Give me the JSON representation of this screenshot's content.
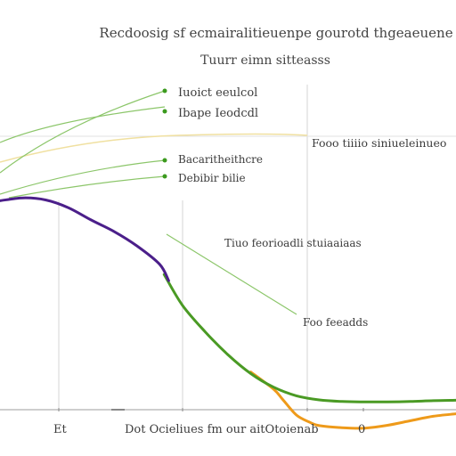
{
  "chart_data": {
    "type": "line",
    "title": "Recdoosig sf ecmairalitieuenpe gourotd thgeaeuene",
    "subtitle": "Tuurr eimn sitteasss",
    "xlabel": "Dot Ocieliues fm our aitOtoienab",
    "x_tick_labels": [
      "Et",
      "0"
    ],
    "xlim": [
      0,
      100
    ],
    "ylim": [
      0,
      100
    ],
    "grid": true,
    "series": [
      {
        "color": "#4b1f8a",
        "x": [
          0,
          5,
          10,
          15,
          20,
          25,
          30,
          35,
          37
        ],
        "y": [
          51.0,
          51.7,
          51.2,
          49.3,
          46.3,
          43.5,
          40.0,
          35.5,
          31.5
        ]
      },
      {
        "color": "#4a9a24",
        "x": [
          36,
          40,
          45,
          50,
          55,
          60,
          65,
          70,
          75,
          80,
          85,
          90,
          95,
          100
        ],
        "y": [
          33.0,
          25.5,
          19.0,
          13.4,
          8.8,
          5.5,
          3.4,
          2.4,
          2.0,
          1.9,
          1.9,
          2.0,
          2.2,
          2.3
        ]
      },
      {
        "color": "#ee9a1a",
        "x": [
          55,
          60,
          62,
          65,
          68,
          70,
          75,
          80,
          85,
          90,
          95,
          100
        ],
        "y": [
          9.2,
          5.0,
          2.5,
          -1.3,
          -3.1,
          -3.9,
          -4.4,
          -4.5,
          -3.8,
          -2.7,
          -1.6,
          -1.0
        ]
      }
    ],
    "annotations": [
      "Iuoict eeulcol",
      "Ibape Ieodcdl",
      "Bacaritheithcre",
      "Debibir bilie",
      "Fooo tiiiio siniueleinueo",
      "Tiuo feorioadli stuiaaiaas",
      "Foo feeadds"
    ],
    "colors": {
      "purple": "#4b1f8a",
      "green": "#4a9a24",
      "orange": "#ee9a1a",
      "light_green": "#8cc66a",
      "yellow": "#f0e0a0",
      "grid": "#d6d6d6",
      "axis": "#bdbdbd"
    }
  }
}
